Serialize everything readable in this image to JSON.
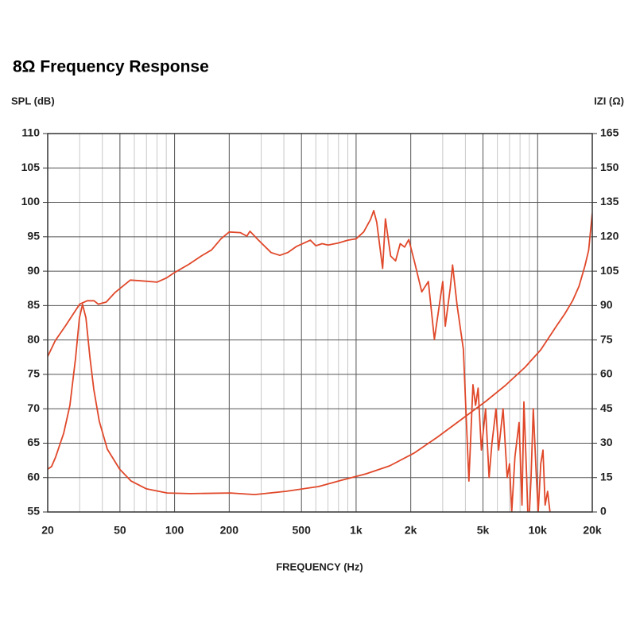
{
  "chart_data": {
    "type": "line",
    "title": "8Ω Frequency Response",
    "ylabel": "SPL (dB)",
    "y2label": "IZI (Ω)",
    "xlabel": "FREQUENCY (Hz)",
    "xscale": "log",
    "xlim": [
      20,
      20000
    ],
    "xticks": [
      20,
      50,
      100,
      200,
      500,
      {
        "value": 1000,
        "label": "1k"
      },
      {
        "value": 2000,
        "label": "2k"
      },
      {
        "value": 5000,
        "label": "5k"
      },
      {
        "value": 10000,
        "label": "10k"
      },
      {
        "value": 20000,
        "label": "20k"
      }
    ],
    "xminorticks": [
      30,
      40,
      60,
      70,
      80,
      90,
      300,
      400,
      600,
      700,
      800,
      900,
      3000,
      4000,
      6000,
      7000,
      8000,
      9000
    ],
    "ylim": [
      55,
      110
    ],
    "yticks": [
      55,
      60,
      65,
      70,
      75,
      80,
      85,
      90,
      95,
      100,
      105,
      110
    ],
    "y2lim": [
      0,
      165
    ],
    "y2ticks": [
      0,
      15,
      30,
      45,
      60,
      75,
      90,
      105,
      120,
      135,
      150,
      165
    ],
    "grid": true,
    "series": [
      {
        "name": "SPL",
        "color": "#e0482a",
        "x": [
          20,
          22,
          25,
          28,
          30,
          33,
          36,
          38,
          42,
          47,
          57,
          65,
          80,
          90,
          100,
          120,
          140,
          160,
          180,
          200,
          230,
          250,
          260,
          290,
          340,
          380,
          420,
          470,
          560,
          600,
          650,
          700,
          800,
          900,
          1000,
          1100,
          1200,
          1250,
          1300,
          1400,
          1450,
          1550,
          1650,
          1750,
          1850,
          1950,
          2100,
          2300,
          2500,
          2700,
          3000,
          3100,
          3300,
          3400,
          3600,
          3900,
          4000,
          4180,
          4400,
          4550,
          4700,
          4900,
          5170,
          5400,
          5600,
          5900,
          6100,
          6450,
          6800,
          7000,
          7200,
          7500,
          7900,
          8200,
          8400,
          8700,
          8900,
          9200,
          9460,
          9800,
          10070,
          10400,
          10700,
          11000,
          11350,
          11700,
          12000
        ],
        "values": [
          77.6,
          79.9,
          82,
          84,
          85.2,
          85.7,
          85.7,
          85.2,
          85.5,
          86.9,
          88.7,
          88.6,
          88.4,
          89,
          89.8,
          91,
          92.2,
          93.1,
          94.7,
          95.7,
          95.6,
          95.1,
          95.8,
          94.5,
          92.7,
          92.3,
          92.7,
          93.6,
          94.5,
          93.7,
          94,
          93.8,
          94.1,
          94.5,
          94.7,
          95.7,
          97.5,
          98.8,
          97.1,
          90.4,
          97.6,
          92.2,
          91.5,
          94,
          93.5,
          94.6,
          91.3,
          87,
          88.5,
          80.1,
          88.5,
          82,
          87.5,
          90.9,
          85,
          78.6,
          71.6,
          59.5,
          73.5,
          70.5,
          73,
          64,
          70,
          60,
          65,
          70,
          64,
          70,
          60,
          62,
          55,
          63,
          68,
          56,
          71,
          60,
          52,
          60,
          70,
          61,
          55,
          62,
          64,
          56,
          58,
          55,
          53
        ]
      },
      {
        "name": "Impedance",
        "color": "#e0482a",
        "axis": "y2",
        "x": [
          20,
          21,
          22.1,
          24.5,
          26.5,
          28.5,
          29.9,
          31.1,
          32.5,
          34.2,
          35.9,
          38.5,
          42.6,
          49.8,
          57.6,
          70,
          91,
          122,
          203,
          276,
          411,
          621,
          837,
          1130,
          1530,
          2080,
          2800,
          3780,
          5170,
          6630,
          8520,
          10400,
          11500,
          12700,
          14100,
          15600,
          16900,
          18200,
          19100,
          20000
        ],
        "values": [
          18.7,
          19.8,
          23.9,
          34.3,
          46.4,
          67.2,
          84.6,
          90.5,
          84.6,
          67.2,
          53.4,
          39.5,
          27.4,
          18.7,
          13.5,
          10.1,
          8.3,
          8,
          8.3,
          7.6,
          9,
          11.1,
          13.9,
          16.6,
          20.1,
          25.6,
          32.6,
          40.2,
          48.2,
          55.1,
          63.1,
          70.7,
          75.9,
          81.1,
          86.3,
          92.2,
          98.4,
          107.1,
          114,
          130.3
        ]
      }
    ]
  }
}
